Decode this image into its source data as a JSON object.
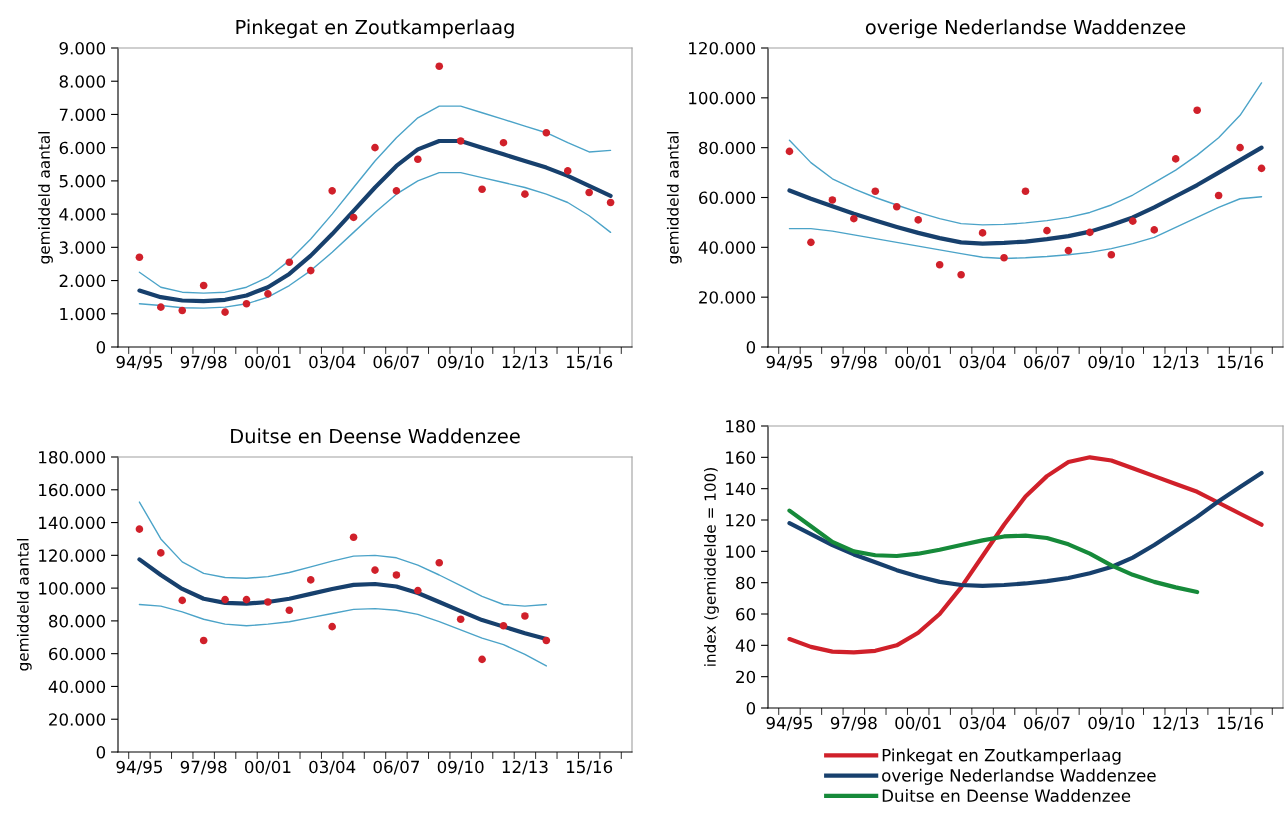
{
  "chart_data": [
    {
      "type": "line",
      "title": "Pinkegat en Zoutkamperlaag",
      "ylabel": "gemiddeld aantal",
      "categories": [
        "94/95",
        null,
        null,
        "97/98",
        null,
        null,
        "00/01",
        null,
        null,
        "03/04",
        null,
        null,
        "06/07",
        null,
        null,
        "09/10",
        null,
        null,
        "12/13",
        null,
        null,
        "15/16",
        null
      ],
      "ylim": [
        0,
        9000
      ],
      "yticks": [
        0,
        {
          "value": 1000,
          "label": "1.000"
        },
        {
          "value": 2000,
          "label": "2.000"
        },
        {
          "value": 3000,
          "label": "3.000"
        },
        {
          "value": 4000,
          "label": "4.000"
        },
        {
          "value": 5000,
          "label": "5.000"
        },
        {
          "value": 6000,
          "label": "6.000"
        },
        {
          "value": 7000,
          "label": "7.000"
        },
        {
          "value": 8000,
          "label": "8.000"
        },
        {
          "value": 9000,
          "label": "9.000"
        }
      ],
      "grid": false,
      "legend": false,
      "series": [
        {
          "type": "scatter",
          "color": "#d0202a",
          "marker": "circle",
          "values": [
            2700,
            1200,
            1100,
            1850,
            1050,
            1300,
            1600,
            2550,
            2300,
            4700,
            3900,
            6000,
            4700,
            5650,
            8450,
            6200,
            4750,
            6150,
            4600,
            6450,
            5300,
            4650,
            4350
          ]
        },
        {
          "type": "line",
          "color": "#4ba3c8",
          "values": [
            2250,
            1800,
            1650,
            1620,
            1650,
            1800,
            2100,
            2600,
            3250,
            4000,
            4800,
            5600,
            6300,
            6900,
            7250,
            7250,
            7050,
            6850,
            6650,
            6450,
            6150,
            5870,
            5920
          ]
        },
        {
          "type": "line",
          "color": "#17406d",
          "values": [
            1700,
            1500,
            1400,
            1380,
            1420,
            1550,
            1800,
            2200,
            2750,
            3400,
            4100,
            4800,
            5450,
            5950,
            6200,
            6200,
            6000,
            5800,
            5600,
            5400,
            5150,
            4850,
            4550
          ]
        },
        {
          "type": "line",
          "color": "#4ba3c8",
          "values": [
            1300,
            1250,
            1180,
            1170,
            1200,
            1300,
            1500,
            1850,
            2300,
            2850,
            3450,
            4050,
            4600,
            5000,
            5250,
            5250,
            5100,
            4950,
            4800,
            4600,
            4350,
            3950,
            3450
          ]
        }
      ]
    },
    {
      "type": "line",
      "title": "overige Nederlandse Waddenzee",
      "ylabel": "gemiddeld aantal",
      "categories": [
        "94/95",
        null,
        null,
        "97/98",
        null,
        null,
        "00/01",
        null,
        null,
        "03/04",
        null,
        null,
        "06/07",
        null,
        null,
        "09/10",
        null,
        null,
        "12/13",
        null,
        null,
        "15/16",
        null
      ],
      "ylim": [
        0,
        120000
      ],
      "yticks": [
        0,
        {
          "value": 20000,
          "label": "20.000"
        },
        {
          "value": 40000,
          "label": "40.000"
        },
        {
          "value": 60000,
          "label": "60.000"
        },
        {
          "value": 80000,
          "label": "80.000"
        },
        {
          "value": 100000,
          "label": "100.000"
        },
        {
          "value": 120000,
          "label": "120.000"
        }
      ],
      "grid": false,
      "legend": false,
      "series": [
        {
          "type": "scatter",
          "color": "#d0202a",
          "marker": "circle",
          "values": [
            78500,
            42000,
            59000,
            51500,
            62500,
            56300,
            51000,
            33000,
            29000,
            45800,
            35800,
            62500,
            46700,
            38700,
            46000,
            37000,
            50500,
            47000,
            75500,
            95000,
            60800,
            80000,
            71700
          ]
        },
        {
          "type": "line",
          "color": "#4ba3c8",
          "values": [
            83000,
            74000,
            67500,
            63500,
            60000,
            57000,
            54000,
            51500,
            49500,
            49000,
            49200,
            49800,
            50700,
            52000,
            54000,
            57000,
            61000,
            66000,
            71000,
            77000,
            84000,
            93000,
            106000
          ]
        },
        {
          "type": "line",
          "color": "#17406d",
          "values": [
            62800,
            59500,
            56500,
            53500,
            50800,
            48200,
            45800,
            43700,
            42000,
            41500,
            41800,
            42300,
            43300,
            44500,
            46300,
            49000,
            52000,
            56000,
            60500,
            65000,
            70000,
            75000,
            80000
          ]
        },
        {
          "type": "line",
          "color": "#4ba3c8",
          "values": [
            47500,
            47500,
            46500,
            45000,
            43500,
            42000,
            40500,
            39000,
            37500,
            36000,
            35500,
            35800,
            36300,
            37000,
            38000,
            39500,
            41500,
            44000,
            48000,
            52000,
            56000,
            59500,
            60300
          ]
        }
      ]
    },
    {
      "type": "line",
      "title": "Duitse en Deense Waddenzee",
      "ylabel": "gemiddeld aantal",
      "categories": [
        "94/95",
        null,
        null,
        "97/98",
        null,
        null,
        "00/01",
        null,
        null,
        "03/04",
        null,
        null,
        "06/07",
        null,
        null,
        "09/10",
        null,
        null,
        "12/13",
        null,
        null,
        "15/16",
        null
      ],
      "ylim": [
        0,
        180000
      ],
      "yticks": [
        0,
        {
          "value": 20000,
          "label": "20.000"
        },
        {
          "value": 40000,
          "label": "40.000"
        },
        {
          "value": 60000,
          "label": "60.000"
        },
        {
          "value": 80000,
          "label": "80.000"
        },
        {
          "value": 100000,
          "label": "100.000"
        },
        {
          "value": 120000,
          "label": "120.000"
        },
        {
          "value": 140000,
          "label": "140.000"
        },
        {
          "value": 160000,
          "label": "160.000"
        },
        {
          "value": 180000,
          "label": "180.000"
        }
      ],
      "grid": false,
      "legend": false,
      "series": [
        {
          "type": "scatter",
          "color": "#d0202a",
          "marker": "circle",
          "values": [
            136000,
            121500,
            92500,
            68000,
            93000,
            93000,
            91500,
            86500,
            105000,
            76500,
            131000,
            111000,
            108000,
            98500,
            115500,
            81000,
            56500,
            77000,
            83000,
            68000,
            null,
            null,
            null
          ]
        },
        {
          "type": "line",
          "color": "#4ba3c8",
          "values": [
            152500,
            130000,
            116000,
            109000,
            106500,
            106000,
            107000,
            109500,
            113000,
            116500,
            119500,
            120000,
            118500,
            114000,
            108000,
            101500,
            95000,
            90000,
            89000,
            90000,
            null,
            null,
            null
          ]
        },
        {
          "type": "line",
          "color": "#17406d",
          "values": [
            117500,
            108000,
            99500,
            93500,
            91000,
            90500,
            91500,
            93500,
            96500,
            99500,
            102000,
            102500,
            101000,
            97000,
            91500,
            86000,
            80500,
            76500,
            72500,
            69000,
            null,
            null,
            null
          ]
        },
        {
          "type": "line",
          "color": "#4ba3c8",
          "values": [
            90000,
            89000,
            85500,
            81000,
            78000,
            77000,
            78000,
            79500,
            82000,
            84500,
            87000,
            87500,
            86500,
            84000,
            79500,
            74500,
            69500,
            65500,
            59500,
            52500,
            null,
            null,
            null
          ]
        }
      ]
    },
    {
      "type": "line",
      "ylabel": "index (gemiddelde = 100)",
      "categories": [
        "94/95",
        null,
        null,
        "97/98",
        null,
        null,
        "00/01",
        null,
        null,
        "03/04",
        null,
        null,
        "06/07",
        null,
        null,
        "09/10",
        null,
        null,
        "12/13",
        null,
        null,
        "15/16",
        null
      ],
      "ylim": [
        0,
        180
      ],
      "yticks": [
        0,
        20,
        40,
        60,
        80,
        100,
        120,
        140,
        160,
        180
      ],
      "grid": false,
      "legend": "bottom",
      "series": [
        {
          "name": "Pinkegat en Zoutkamperlaag",
          "color": "#d0202a",
          "values": [
            44,
            39,
            36,
            35.5,
            36.5,
            40,
            48,
            60,
            77,
            97,
            117,
            135,
            148,
            157,
            160,
            158,
            153,
            148,
            143,
            138,
            131,
            124,
            117
          ]
        },
        {
          "name": "overige Nederlandse Waddenzee",
          "color": "#17406d",
          "values": [
            118,
            111,
            104,
            98,
            93,
            88,
            84,
            80.5,
            78.5,
            78,
            78.5,
            79.5,
            81,
            83,
            86,
            90,
            96,
            104,
            113,
            122,
            132,
            141,
            150
          ]
        },
        {
          "name": "Duitse en Deense Waddenzee",
          "color": "#168a3a",
          "values": [
            126,
            116,
            106,
            100,
            97.5,
            97,
            98.5,
            101,
            104,
            107,
            109.5,
            110,
            108.5,
            104.5,
            98.5,
            91,
            85,
            80.5,
            77,
            74,
            null,
            null,
            null
          ]
        }
      ]
    }
  ]
}
